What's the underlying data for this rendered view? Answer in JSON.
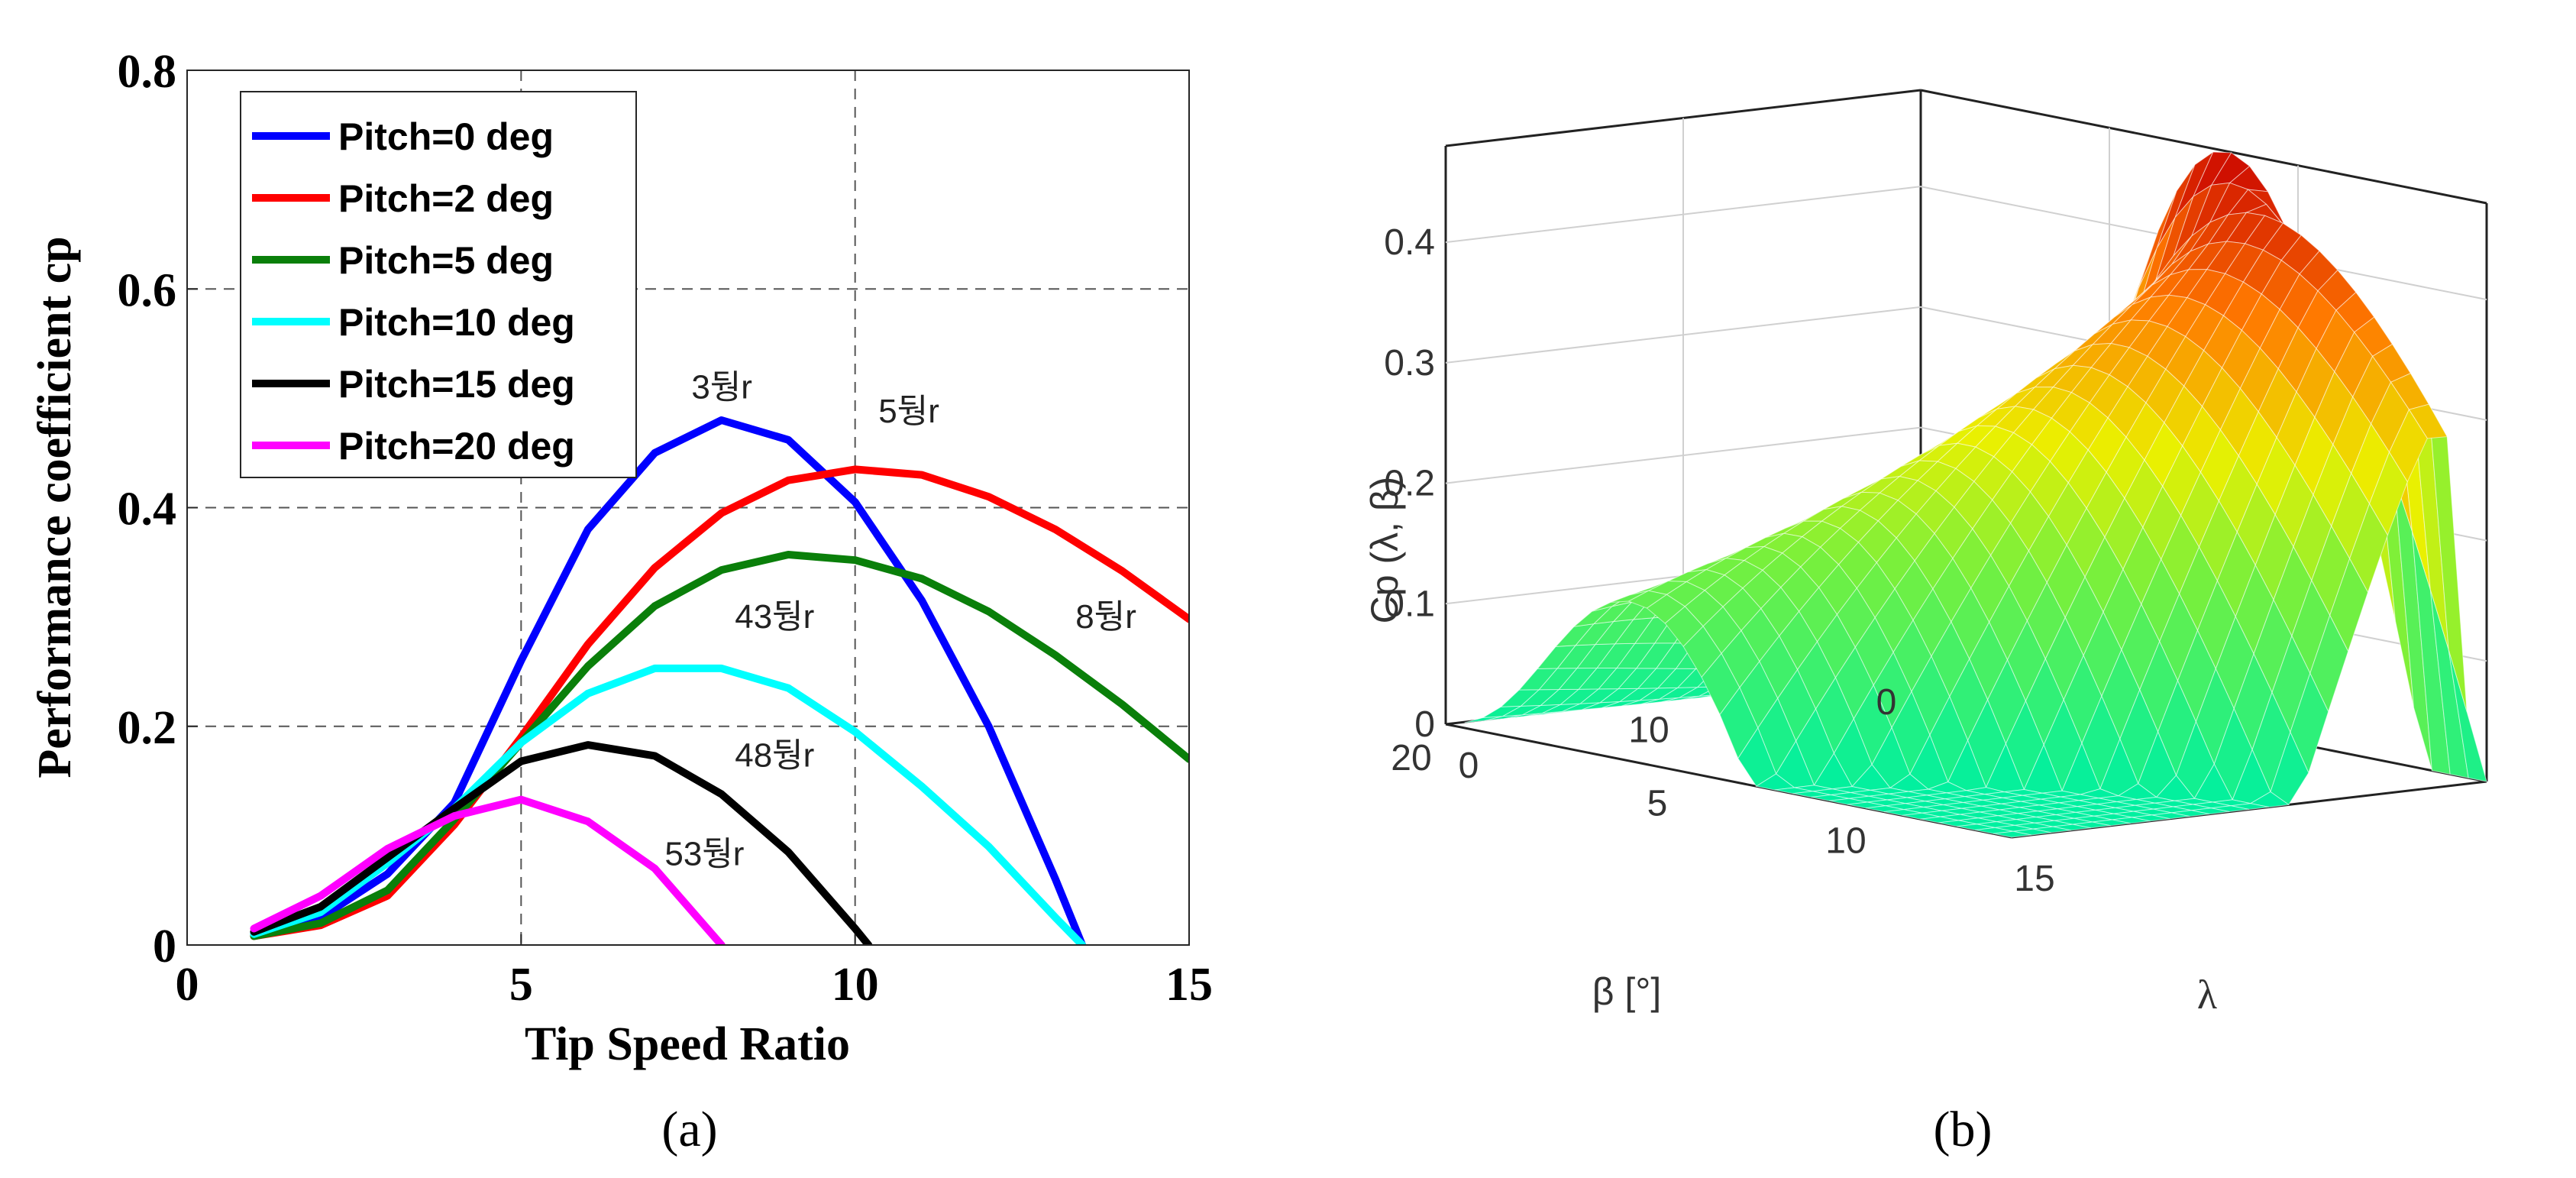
{
  "panel_a_label": "(a)",
  "panel_b_label": "(b)",
  "chart_data": [
    {
      "type": "line",
      "title": "",
      "xlabel": "Tip Speed Ratio",
      "ylabel": "Performance coefficient cp",
      "xlim": [
        0,
        15
      ],
      "ylim": [
        0,
        0.8
      ],
      "xticks": [
        0,
        5,
        10,
        15
      ],
      "yticks": [
        0,
        0.2,
        0.4,
        0.6,
        0.8
      ],
      "xtick_labels": [
        "0",
        "5",
        "10",
        "15"
      ],
      "ytick_labels": [
        "0",
        "0.2",
        "0.4",
        "0.6",
        "0.8"
      ],
      "grid": "dashed at x=5,10 and y=0.2,0.4,0.6",
      "legend_position": "top-left",
      "series": [
        {
          "name": "Pitch=0 deg",
          "color": "#0000ff",
          "x": [
            1,
            2,
            3,
            4,
            5,
            6,
            7,
            8,
            9,
            10,
            11,
            12,
            13,
            13.4
          ],
          "y": [
            0.01,
            0.025,
            0.065,
            0.13,
            0.26,
            0.38,
            0.45,
            0.48,
            0.462,
            0.405,
            0.315,
            0.2,
            0.06,
            0.0
          ]
        },
        {
          "name": "Pitch=2 deg",
          "color": "#ff0000",
          "x": [
            1,
            2,
            3,
            4,
            5,
            6,
            7,
            8,
            9,
            10,
            11,
            12,
            13,
            14,
            15
          ],
          "y": [
            0.008,
            0.018,
            0.045,
            0.11,
            0.19,
            0.275,
            0.345,
            0.395,
            0.425,
            0.435,
            0.43,
            0.41,
            0.38,
            0.342,
            0.298
          ]
        },
        {
          "name": "Pitch=5 deg",
          "color": "#0a7f0a",
          "x": [
            1,
            2,
            3,
            4,
            5,
            6,
            7,
            8,
            9,
            10,
            11,
            12,
            13,
            14,
            15
          ],
          "y": [
            0.008,
            0.02,
            0.05,
            0.115,
            0.185,
            0.255,
            0.31,
            0.343,
            0.357,
            0.352,
            0.335,
            0.305,
            0.265,
            0.22,
            0.17
          ]
        },
        {
          "name": "Pitch=10 deg",
          "color": "#00ffff",
          "x": [
            1,
            2,
            3,
            4,
            5,
            6,
            7,
            8,
            9,
            10,
            11,
            12,
            13,
            13.4
          ],
          "y": [
            0.01,
            0.03,
            0.075,
            0.125,
            0.185,
            0.23,
            0.253,
            0.253,
            0.235,
            0.195,
            0.145,
            0.09,
            0.025,
            0.0
          ]
        },
        {
          "name": "Pitch=15 deg",
          "color": "#000000",
          "x": [
            1,
            2,
            3,
            4,
            5,
            6,
            7,
            8,
            9,
            10,
            10.2
          ],
          "y": [
            0.012,
            0.035,
            0.08,
            0.125,
            0.168,
            0.183,
            0.173,
            0.138,
            0.085,
            0.015,
            0.0
          ]
        },
        {
          "name": "Pitch=20 deg",
          "color": "#ff00ff",
          "x": [
            1,
            2,
            3,
            4,
            5,
            6,
            7,
            8
          ],
          "y": [
            0.015,
            0.045,
            0.088,
            0.118,
            0.133,
            0.113,
            0.07,
            0.0
          ]
        }
      ],
      "annotations": [
        {
          "text": "3뒁r",
          "x": 7.55,
          "y": 0.5
        },
        {
          "text": "5뒁r",
          "x": 10.35,
          "y": 0.478
        },
        {
          "text": "43뒁r",
          "x": 8.2,
          "y": 0.29
        },
        {
          "text": "8뒁r",
          "x": 13.3,
          "y": 0.29
        },
        {
          "text": "48뒁r",
          "x": 8.2,
          "y": 0.163
        },
        {
          "text": "53뒁r",
          "x": 7.15,
          "y": 0.073
        }
      ]
    },
    {
      "type": "surface3d",
      "zlabel": "Cp (λ, β)",
      "xlabel": "λ",
      "ylabel": "β [°]",
      "lambda_ticks": [
        "0",
        "5",
        "10",
        "15"
      ],
      "beta_ticks": [
        "0",
        "10",
        "20"
      ],
      "z_ticks": [
        "0",
        "0.1",
        "0.2",
        "0.3",
        "0.4"
      ],
      "lambda_range": [
        0,
        15
      ],
      "beta_range": [
        0,
        20
      ],
      "z_range": [
        0,
        0.48
      ],
      "colormap": "green-yellow-red"
    }
  ]
}
